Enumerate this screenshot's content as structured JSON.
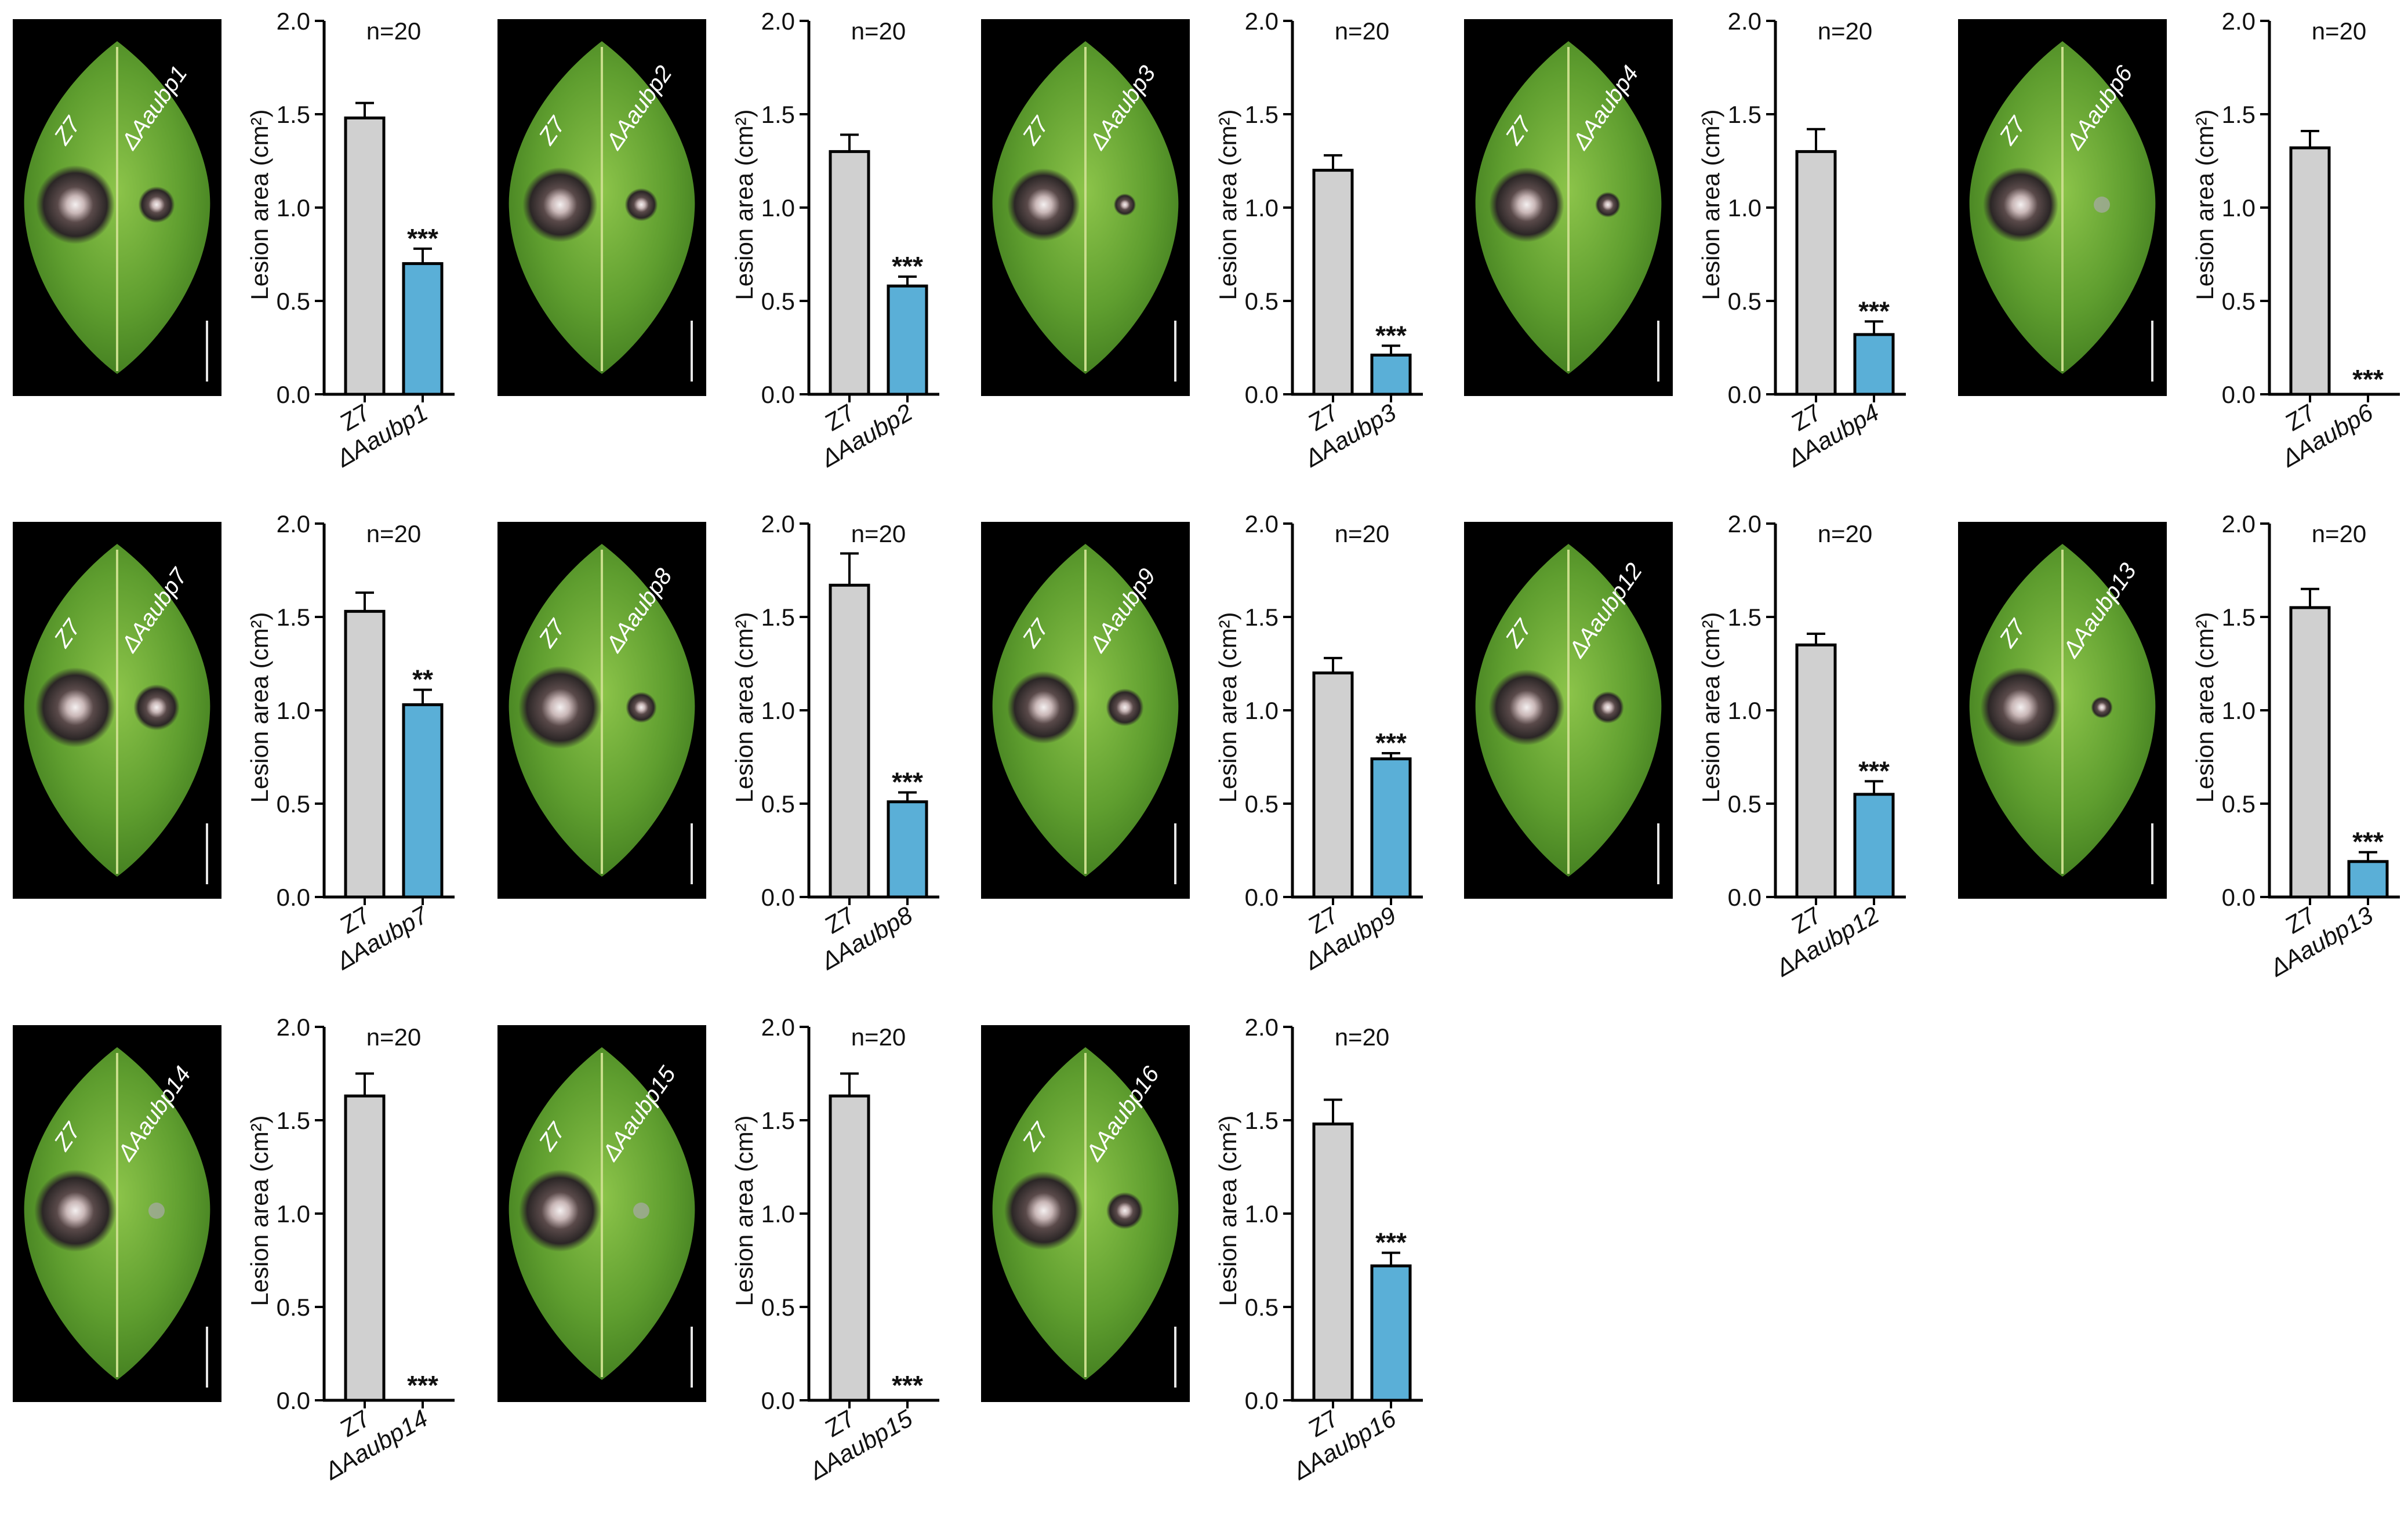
{
  "figure": {
    "background": "#ffffff",
    "z7_color": "#d0d0d0",
    "mutant_color": "#5aafd7"
  },
  "panels": [
    {
      "id": "1",
      "leaf_left_label": "Z7",
      "leaf_right_label": "ΔAaubp1"
    },
    {
      "id": "2",
      "leaf_left_label": "Z7",
      "leaf_right_label": "ΔAaubp2"
    },
    {
      "id": "3",
      "leaf_left_label": "Z7",
      "leaf_right_label": "ΔAaubp3"
    },
    {
      "id": "4",
      "leaf_left_label": "Z7",
      "leaf_right_label": "ΔAaubp4"
    },
    {
      "id": "6",
      "leaf_left_label": "Z7",
      "leaf_right_label": "ΔAaubp6"
    },
    {
      "id": "7",
      "leaf_left_label": "Z7",
      "leaf_right_label": "ΔAaubp7"
    },
    {
      "id": "8",
      "leaf_left_label": "Z7",
      "leaf_right_label": "ΔAaubp8"
    },
    {
      "id": "9",
      "leaf_left_label": "Z7",
      "leaf_right_label": "ΔAaubp9"
    },
    {
      "id": "12",
      "leaf_left_label": "Z7",
      "leaf_right_label": "ΔAaubp12"
    },
    {
      "id": "13",
      "leaf_left_label": "Z7",
      "leaf_right_label": "ΔAaubp13"
    },
    {
      "id": "14",
      "leaf_left_label": "Z7",
      "leaf_right_label": "ΔAaubp14"
    },
    {
      "id": "15",
      "leaf_left_label": "Z7",
      "leaf_right_label": "ΔAaubp15"
    },
    {
      "id": "16",
      "leaf_left_label": "Z7",
      "leaf_right_label": "ΔAaubp16"
    }
  ],
  "chart_data": [
    {
      "type": "bar",
      "ylabel": "Lesion area (cm²)",
      "ylim": [
        0,
        2.0
      ],
      "yticks": [
        "0.0",
        "0.5",
        "1.0",
        "1.5",
        "2.0"
      ],
      "annotation": "n=20",
      "categories": [
        "Z7",
        "ΔAaubp1"
      ],
      "values": [
        1.48,
        0.7
      ],
      "errors": [
        0.08,
        0.08
      ],
      "significance": "***"
    },
    {
      "type": "bar",
      "ylabel": "Lesion area (cm²)",
      "ylim": [
        0,
        2.0
      ],
      "yticks": [
        "0.0",
        "0.5",
        "1.0",
        "1.5",
        "2.0"
      ],
      "annotation": "n=20",
      "categories": [
        "Z7",
        "ΔAaubp2"
      ],
      "values": [
        1.3,
        0.58
      ],
      "errors": [
        0.09,
        0.05
      ],
      "significance": "***"
    },
    {
      "type": "bar",
      "ylabel": "Lesion area (cm²)",
      "ylim": [
        0,
        2.0
      ],
      "yticks": [
        "0.0",
        "0.5",
        "1.0",
        "1.5",
        "2.0"
      ],
      "annotation": "n=20",
      "categories": [
        "Z7",
        "ΔAaubp3"
      ],
      "values": [
        1.2,
        0.21
      ],
      "errors": [
        0.08,
        0.05
      ],
      "significance": "***"
    },
    {
      "type": "bar",
      "ylabel": "Lesion area (cm²)",
      "ylim": [
        0,
        2.0
      ],
      "yticks": [
        "0.0",
        "0.5",
        "1.0",
        "1.5",
        "2.0"
      ],
      "annotation": "n=20",
      "categories": [
        "Z7",
        "ΔAaubp4"
      ],
      "values": [
        1.3,
        0.32
      ],
      "errors": [
        0.12,
        0.07
      ],
      "significance": "***"
    },
    {
      "type": "bar",
      "ylabel": "Lesion area (cm²)",
      "ylim": [
        0,
        2.0
      ],
      "yticks": [
        "0.0",
        "0.5",
        "1.0",
        "1.5",
        "2.0"
      ],
      "annotation": "n=20",
      "categories": [
        "Z7",
        "ΔAaubp6"
      ],
      "values": [
        1.32,
        0.0
      ],
      "errors": [
        0.09,
        0.0
      ],
      "significance": "***"
    },
    {
      "type": "bar",
      "ylabel": "Lesion area (cm²)",
      "ylim": [
        0,
        2.0
      ],
      "yticks": [
        "0.0",
        "0.5",
        "1.0",
        "1.5",
        "2.0"
      ],
      "annotation": "n=20",
      "categories": [
        "Z7",
        "ΔAaubp7"
      ],
      "values": [
        1.53,
        1.03
      ],
      "errors": [
        0.1,
        0.08
      ],
      "significance": "**"
    },
    {
      "type": "bar",
      "ylabel": "Lesion area (cm²)",
      "ylim": [
        0,
        2.0
      ],
      "yticks": [
        "0.0",
        "0.5",
        "1.0",
        "1.5",
        "2.0"
      ],
      "annotation": "n=20",
      "categories": [
        "Z7",
        "ΔAaubp8"
      ],
      "values": [
        1.67,
        0.51
      ],
      "errors": [
        0.17,
        0.05
      ],
      "significance": "***"
    },
    {
      "type": "bar",
      "ylabel": "Lesion area (cm²)",
      "ylim": [
        0,
        2.0
      ],
      "yticks": [
        "0.0",
        "0.5",
        "1.0",
        "1.5",
        "2.0"
      ],
      "annotation": "n=20",
      "categories": [
        "Z7",
        "ΔAaubp9"
      ],
      "values": [
        1.2,
        0.74
      ],
      "errors": [
        0.08,
        0.03
      ],
      "significance": "***"
    },
    {
      "type": "bar",
      "ylabel": "Lesion area (cm²)",
      "ylim": [
        0,
        2.0
      ],
      "yticks": [
        "0.0",
        "0.5",
        "1.0",
        "1.5",
        "2.0"
      ],
      "annotation": "n=20",
      "categories": [
        "Z7",
        "ΔAaubp12"
      ],
      "values": [
        1.35,
        0.55
      ],
      "errors": [
        0.06,
        0.07
      ],
      "significance": "***"
    },
    {
      "type": "bar",
      "ylabel": "Lesion area (cm²)",
      "ylim": [
        0,
        2.0
      ],
      "yticks": [
        "0.0",
        "0.5",
        "1.0",
        "1.5",
        "2.0"
      ],
      "annotation": "n=20",
      "categories": [
        "Z7",
        "ΔAaubp13"
      ],
      "values": [
        1.55,
        0.19
      ],
      "errors": [
        0.1,
        0.05
      ],
      "significance": "***"
    },
    {
      "type": "bar",
      "ylabel": "Lesion area (cm²)",
      "ylim": [
        0,
        2.0
      ],
      "yticks": [
        "0.0",
        "0.5",
        "1.0",
        "1.5",
        "2.0"
      ],
      "annotation": "n=20",
      "categories": [
        "Z7",
        "ΔAaubp14"
      ],
      "values": [
        1.63,
        0.0
      ],
      "errors": [
        0.12,
        0.0
      ],
      "significance": "***"
    },
    {
      "type": "bar",
      "ylabel": "Lesion area (cm²)",
      "ylim": [
        0,
        2.0
      ],
      "yticks": [
        "0.0",
        "0.5",
        "1.0",
        "1.5",
        "2.0"
      ],
      "annotation": "n=20",
      "categories": [
        "Z7",
        "ΔAaubp15"
      ],
      "values": [
        1.63,
        0.0
      ],
      "errors": [
        0.12,
        0.0
      ],
      "significance": "***"
    },
    {
      "type": "bar",
      "ylabel": "Lesion area (cm²)",
      "ylim": [
        0,
        2.0
      ],
      "yticks": [
        "0.0",
        "0.5",
        "1.0",
        "1.5",
        "2.0"
      ],
      "annotation": "n=20",
      "categories": [
        "Z7",
        "ΔAaubp16"
      ],
      "values": [
        1.48,
        0.72
      ],
      "errors": [
        0.13,
        0.07
      ],
      "significance": "***"
    }
  ]
}
